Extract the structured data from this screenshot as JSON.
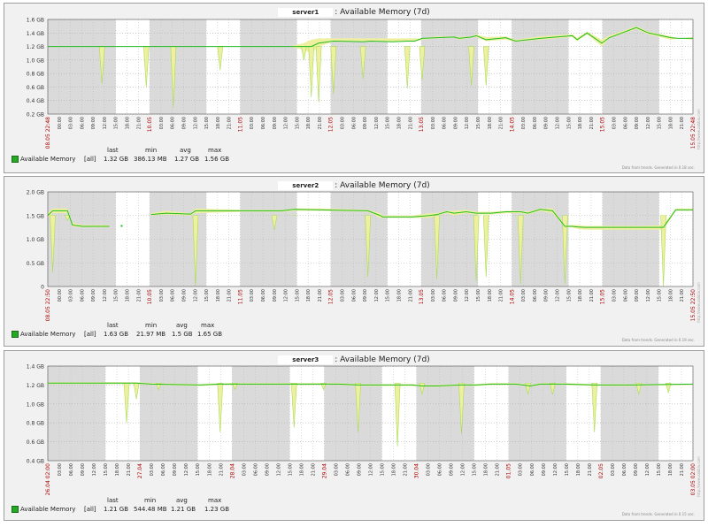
{
  "colors": {
    "panel_bg": "#f1f1f1",
    "band_gray": "#dadada",
    "band_white": "#ffffff",
    "line": "#22bb22",
    "fill": "#eef0a0",
    "date_label": "#aa0000",
    "tick_label": "#333333"
  },
  "chart_data": [
    {
      "type": "area",
      "host": "server1",
      "title": ": Available Memory (7d)",
      "yticks": [
        "1.6 GB",
        "1.4 GB",
        "1.2 GB",
        "1.0 GB",
        "0.8 GB",
        "0.6 GB",
        "0.4 GB",
        "0.2 GB"
      ],
      "ylim": [
        0.2,
        1.6
      ],
      "xticks": [
        "08.05 22:48",
        "00:00",
        "03:00",
        "06:00",
        "09:00",
        "12:00",
        "15:00",
        "18:00",
        "21:00",
        "10.05",
        "03:00",
        "06:00",
        "09:00",
        "12:00",
        "15:00",
        "18:00",
        "21:00",
        "11.05",
        "03:00",
        "06:00",
        "09:00",
        "12:00",
        "15:00",
        "18:00",
        "21:00",
        "12.05",
        "03:00",
        "06:00",
        "09:00",
        "12:00",
        "15:00",
        "18:00",
        "21:00",
        "13.05",
        "03:00",
        "06:00",
        "09:00",
        "12:00",
        "15:00",
        "18:00",
        "21:00",
        "14.05",
        "03:00",
        "06:00",
        "09:00",
        "12:00",
        "15:00",
        "18:00",
        "21:00",
        "15.05",
        "03:00",
        "06:00",
        "09:00",
        "12:00",
        "15:00",
        "18:00",
        "21:00",
        "15.05 22:48"
      ],
      "date_tick_indices": [
        0,
        9,
        17,
        25,
        33,
        41,
        49,
        57
      ],
      "series": [
        {
          "name": "Available Memory",
          "x": [
            0,
            22,
            40,
            51,
            66,
            70,
            89,
            90,
            97,
            98,
            104,
            107,
            110,
            116,
            128,
            131,
            140,
            146,
            149,
            152,
            158,
            165,
            167,
            172,
            174,
            178,
            186,
            190,
            200,
            213,
            215,
            219,
            225,
            228,
            239,
            244,
            253,
            256,
            262
          ],
          "max": [
            1.2,
            1.2,
            1.2,
            1.2,
            1.2,
            1.2,
            1.2,
            1.2,
            1.2,
            1.2,
            1.25,
            1.3,
            1.32,
            1.32,
            1.32,
            1.32,
            1.32,
            1.32,
            1.32,
            1.32,
            1.35,
            1.35,
            1.34,
            1.35,
            1.38,
            1.34,
            1.35,
            1.3,
            1.35,
            1.38,
            1.33,
            1.42,
            1.3,
            1.36,
            1.5,
            1.42,
            1.35,
            1.32,
            1.34
          ],
          "avg": [
            1.2,
            1.2,
            1.2,
            1.2,
            1.2,
            1.2,
            1.2,
            1.2,
            1.2,
            1.2,
            1.2,
            1.2,
            1.25,
            1.28,
            1.27,
            1.28,
            1.27,
            1.28,
            1.28,
            1.32,
            1.33,
            1.34,
            1.32,
            1.34,
            1.36,
            1.3,
            1.33,
            1.28,
            1.32,
            1.36,
            1.3,
            1.4,
            1.25,
            1.33,
            1.48,
            1.4,
            1.33,
            1.32,
            1.32
          ],
          "min": [
            1.2,
            1.2,
            1.2,
            1.2,
            1.2,
            1.2,
            1.2,
            1.2,
            1.2,
            1.2,
            1.15,
            1.1,
            1.2,
            1.27,
            1.27,
            1.27,
            1.27,
            1.27,
            1.27,
            1.3,
            1.32,
            1.33,
            1.3,
            1.33,
            1.34,
            1.28,
            1.3,
            1.27,
            1.3,
            1.34,
            1.28,
            1.38,
            1.2,
            1.32,
            1.46,
            1.38,
            1.3,
            1.32,
            1.3
          ]
        }
      ],
      "dips": [
        [
          22,
          0.65
        ],
        [
          40,
          0.6
        ],
        [
          51,
          0.3
        ],
        [
          70,
          0.85
        ],
        [
          104,
          1.0
        ],
        [
          107,
          0.45
        ],
        [
          110,
          0.38
        ],
        [
          116,
          0.5
        ],
        [
          128,
          0.72
        ],
        [
          146,
          0.58
        ],
        [
          152,
          0.7
        ],
        [
          172,
          0.62
        ],
        [
          178,
          0.62
        ]
      ],
      "gaps": [
        [
          24,
          25
        ],
        [
          33,
          34
        ]
      ],
      "legend": {
        "headers": [
          "last",
          "min",
          "avg",
          "max"
        ],
        "rows": [
          {
            "name": "Available Memory",
            "func": "[all]",
            "last": "1.32 GB",
            "min": "386.13 MB",
            "avg": "1.27 GB",
            "max": "1.56 GB"
          }
        ]
      },
      "note": "Data from trends. Generated in 0.18 sec.",
      "side_text": "http://www.zabbix.com"
    },
    {
      "type": "area",
      "host": "server2",
      "title": ": Available Memory (7d)",
      "yticks": [
        "2.0 GB",
        "1.5 GB",
        "1.0 GB",
        "0.5 GB",
        "0"
      ],
      "ylim": [
        0,
        2.0
      ],
      "xticks": [
        "08.05 22:50",
        "00:00",
        "03:00",
        "06:00",
        "09:00",
        "12:00",
        "15:00",
        "18:00",
        "21:00",
        "10.05",
        "03:00",
        "06:00",
        "09:00",
        "12:00",
        "15:00",
        "18:00",
        "21:00",
        "11.05",
        "03:00",
        "06:00",
        "09:00",
        "12:00",
        "15:00",
        "18:00",
        "21:00",
        "12.05",
        "03:00",
        "06:00",
        "09:00",
        "12:00",
        "15:00",
        "18:00",
        "21:00",
        "13.05",
        "03:00",
        "06:00",
        "09:00",
        "12:00",
        "15:00",
        "18:00",
        "21:00",
        "14.05",
        "03:00",
        "06:00",
        "09:00",
        "12:00",
        "15:00",
        "18:00",
        "21:00",
        "15.05",
        "03:00",
        "06:00",
        "09:00",
        "12:00",
        "15:00",
        "18:00",
        "21:00",
        "15.05 22:50"
      ],
      "date_tick_indices": [
        0,
        9,
        17,
        25,
        33,
        41,
        49,
        57
      ],
      "series": [
        {
          "name": "Available Memory",
          "x": [
            0,
            2,
            8,
            10,
            14,
            25,
            26,
            42,
            48,
            58,
            60,
            80,
            95,
            100,
            111,
            130,
            135,
            136,
            148,
            155,
            158,
            162,
            165,
            170,
            174,
            176,
            180,
            186,
            192,
            195,
            200,
            205,
            210,
            213,
            215,
            218,
            238,
            242,
            250,
            255,
            262
          ],
          "max": [
            1.55,
            1.65,
            1.65,
            1.35,
            1.3,
            1.3,
            null,
            1.55,
            1.6,
            1.55,
            1.65,
            1.62,
            1.62,
            1.65,
            1.65,
            1.62,
            1.55,
            1.5,
            1.5,
            1.55,
            1.55,
            1.6,
            1.6,
            1.62,
            1.58,
            1.58,
            1.58,
            1.6,
            1.6,
            1.58,
            1.65,
            1.65,
            1.3,
            1.3,
            1.3,
            1.28,
            1.28,
            1.28,
            1.3,
            1.65,
            1.65
          ],
          "avg": [
            1.5,
            1.6,
            1.6,
            1.3,
            1.27,
            1.27,
            null,
            1.52,
            1.55,
            1.53,
            1.6,
            1.6,
            1.6,
            1.63,
            1.62,
            1.6,
            1.5,
            1.47,
            1.47,
            1.5,
            1.52,
            1.58,
            1.55,
            1.58,
            1.55,
            1.55,
            1.55,
            1.58,
            1.58,
            1.55,
            1.63,
            1.6,
            1.27,
            1.27,
            1.26,
            1.25,
            1.25,
            1.25,
            1.25,
            1.62,
            1.62
          ],
          "min": [
            1.45,
            1.55,
            1.55,
            1.27,
            1.25,
            1.25,
            null,
            1.5,
            1.52,
            1.5,
            1.55,
            1.58,
            1.58,
            1.6,
            1.6,
            1.58,
            1.45,
            1.45,
            1.45,
            1.45,
            1.5,
            1.55,
            1.5,
            1.55,
            1.52,
            1.52,
            1.52,
            1.55,
            1.55,
            1.52,
            1.6,
            1.55,
            1.25,
            1.25,
            1.22,
            1.2,
            1.2,
            1.2,
            1.2,
            1.6,
            1.6
          ]
        }
      ],
      "dips": [
        [
          2,
          0.3
        ],
        [
          8,
          1.4
        ],
        [
          60,
          0.02
        ],
        [
          92,
          1.2
        ],
        [
          100,
          1.5
        ],
        [
          130,
          0.2
        ],
        [
          158,
          0.15
        ],
        [
          174,
          0.1
        ],
        [
          178,
          0.2
        ],
        [
          192,
          0.05
        ],
        [
          210,
          0.05
        ],
        [
          250,
          0.0
        ]
      ],
      "gaps": [
        [
          26,
          42
        ]
      ],
      "points": [
        [
          30,
          1.28
        ]
      ],
      "legend": {
        "headers": [
          "last",
          "min",
          "avg",
          "max"
        ],
        "rows": [
          {
            "name": "Available Memory",
            "func": "[all]",
            "last": "1.63 GB",
            "min": "21.97 MB",
            "avg": "1.5 GB",
            "max": "1.65 GB"
          }
        ]
      },
      "note": "Data from trends. Generated in 0.19 sec.",
      "side_text": "http://www.zabbix.com"
    },
    {
      "type": "area",
      "host": "server3",
      "title": ": Available Memory (7d)",
      "yticks": [
        "1.4 GB",
        "1.2 GB",
        "1.0 GB",
        "0.8 GB",
        "0.6 GB",
        "0.4 GB"
      ],
      "ylim": [
        0.4,
        1.4
      ],
      "xticks": [
        "26.04 02:00",
        "03:00",
        "06:00",
        "09:00",
        "12:00",
        "15:00",
        "18:00",
        "21:00",
        "27.04",
        "03:00",
        "06:00",
        "09:00",
        "12:00",
        "15:00",
        "18:00",
        "21:00",
        "28.04",
        "03:00",
        "06:00",
        "09:00",
        "12:00",
        "15:00",
        "18:00",
        "21:00",
        "29.04",
        "03:00",
        "06:00",
        "09:00",
        "12:00",
        "15:00",
        "18:00",
        "21:00",
        "30.04",
        "03:00",
        "06:00",
        "09:00",
        "12:00",
        "15:00",
        "18:00",
        "21:00",
        "01.05",
        "03:00",
        "06:00",
        "09:00",
        "12:00",
        "15:00",
        "18:00",
        "21:00",
        "02.05",
        "03:00",
        "06:00",
        "09:00",
        "12:00",
        "15:00",
        "18:00",
        "21:00",
        "03.05 02:00"
      ],
      "date_tick_indices": [
        0,
        8,
        16,
        24,
        32,
        40,
        48,
        56
      ],
      "series": [
        {
          "name": "Available Memory",
          "x": [
            0,
            30,
            36,
            42,
            62,
            70,
            90,
            100,
            106,
            118,
            126,
            134,
            148,
            152,
            158,
            168,
            174,
            180,
            190,
            196,
            200,
            210,
            222,
            230,
            238,
            262
          ],
          "max": [
            1.23,
            1.23,
            1.23,
            1.22,
            1.21,
            1.22,
            1.22,
            1.22,
            1.22,
            1.22,
            1.21,
            1.21,
            1.21,
            1.2,
            1.2,
            1.21,
            1.21,
            1.22,
            1.22,
            1.2,
            1.22,
            1.22,
            1.21,
            1.21,
            1.21,
            1.21
          ],
          "avg": [
            1.22,
            1.22,
            1.22,
            1.21,
            1.2,
            1.21,
            1.21,
            1.21,
            1.21,
            1.21,
            1.2,
            1.2,
            1.2,
            1.19,
            1.19,
            1.2,
            1.2,
            1.21,
            1.21,
            1.19,
            1.21,
            1.21,
            1.2,
            1.2,
            1.2,
            1.21
          ],
          "min": [
            1.21,
            1.21,
            1.21,
            1.2,
            1.19,
            1.2,
            1.2,
            1.2,
            1.2,
            1.2,
            1.19,
            1.19,
            1.19,
            1.18,
            1.18,
            1.19,
            1.19,
            1.2,
            1.2,
            1.18,
            1.2,
            1.2,
            1.19,
            1.19,
            1.19,
            1.2
          ]
        }
      ],
      "dips": [
        [
          32,
          0.8
        ],
        [
          36,
          1.05
        ],
        [
          45,
          1.15
        ],
        [
          70,
          0.7
        ],
        [
          76,
          1.15
        ],
        [
          100,
          0.75
        ],
        [
          112,
          1.15
        ],
        [
          126,
          0.7
        ],
        [
          142,
          0.55
        ],
        [
          152,
          1.1
        ],
        [
          168,
          0.68
        ],
        [
          195,
          1.1
        ],
        [
          205,
          1.1
        ],
        [
          222,
          0.7
        ],
        [
          240,
          1.1
        ],
        [
          252,
          1.12
        ]
      ],
      "gaps": [],
      "legend": {
        "headers": [
          "last",
          "min",
          "avg",
          "max"
        ],
        "rows": [
          {
            "name": "Available Memory",
            "func": "[all]",
            "last": "1.21 GB",
            "min": "544.48 MB",
            "avg": "1.21 GB",
            "max": "1.23 GB"
          }
        ]
      },
      "note": "Data from trends. Generated in 0.15 sec.",
      "side_text": "http://www.zabbix.com"
    }
  ]
}
